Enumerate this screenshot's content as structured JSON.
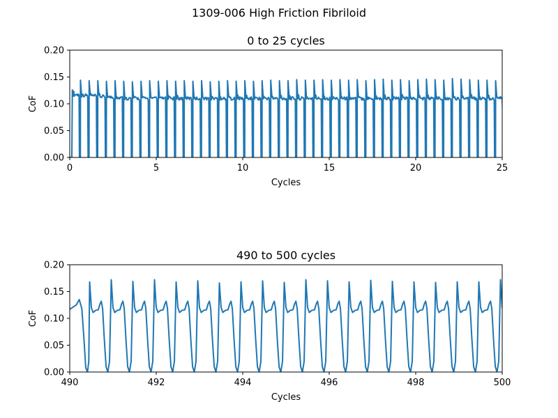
{
  "figure": {
    "suptitle": "1309-006 High Friction Fibriloid"
  },
  "colors": {
    "series": "#1f77b4",
    "axes": "#000000"
  },
  "chart_data": [
    {
      "type": "line",
      "title": "0 to 25 cycles",
      "xlabel": "Cycles",
      "ylabel": "CoF",
      "xlim": [
        0,
        25
      ],
      "ylim": [
        0,
        0.2
      ],
      "xticks": [
        0,
        5,
        10,
        15,
        20,
        25
      ],
      "xtick_labels": [
        "0",
        "5",
        "10",
        "15",
        "20",
        "25"
      ],
      "yticks": [
        0,
        0.05,
        0.1,
        0.15,
        0.2
      ],
      "ytick_labels": [
        "0.00",
        "0.05",
        "0.10",
        "0.15",
        "0.20"
      ],
      "grid": false,
      "pattern": {
        "half_cycle_period": 0.5,
        "plateau_cof": 0.11,
        "peak_cof": [
          0.126,
          0.144,
          0.143,
          0.143,
          0.142,
          0.143,
          0.142,
          0.141,
          0.142,
          0.143,
          0.142,
          0.143,
          0.142,
          0.143,
          0.142,
          0.143,
          0.141,
          0.142,
          0.143,
          0.142,
          0.143,
          0.142,
          0.143,
          0.144,
          0.143,
          0.143,
          0.145,
          0.144,
          0.144,
          0.145,
          0.144,
          0.145,
          0.144,
          0.145,
          0.143,
          0.145,
          0.146,
          0.144,
          0.145,
          0.143,
          0.145,
          0.146,
          0.145,
          0.144,
          0.147,
          0.146,
          0.145,
          0.144,
          0.144,
          0.143
        ],
        "min_cof": 0.0
      }
    },
    {
      "type": "line",
      "title": "490 to 500 cycles",
      "xlabel": "Cycles",
      "ylabel": "CoF",
      "xlim": [
        490,
        500
      ],
      "ylim": [
        0,
        0.2
      ],
      "xticks": [
        490,
        492,
        494,
        496,
        498,
        500
      ],
      "xtick_labels": [
        "490",
        "492",
        "494",
        "496",
        "498",
        "500"
      ],
      "yticks": [
        0,
        0.05,
        0.1,
        0.15,
        0.2
      ],
      "ytick_labels": [
        "0.00",
        "0.05",
        "0.10",
        "0.15",
        "0.20"
      ],
      "grid": false,
      "pattern": {
        "half_cycle_period": 0.5,
        "plateau_cof": 0.115,
        "hump_cof": 0.132,
        "peak_cof": [
          0.168,
          0.172,
          0.169,
          0.172,
          0.168,
          0.17,
          0.166,
          0.168,
          0.17,
          0.167,
          0.172,
          0.17,
          0.168,
          0.171,
          0.169,
          0.168,
          0.167,
          0.168,
          0.168,
          0.172
        ],
        "min_cof": 0.0
      }
    }
  ]
}
